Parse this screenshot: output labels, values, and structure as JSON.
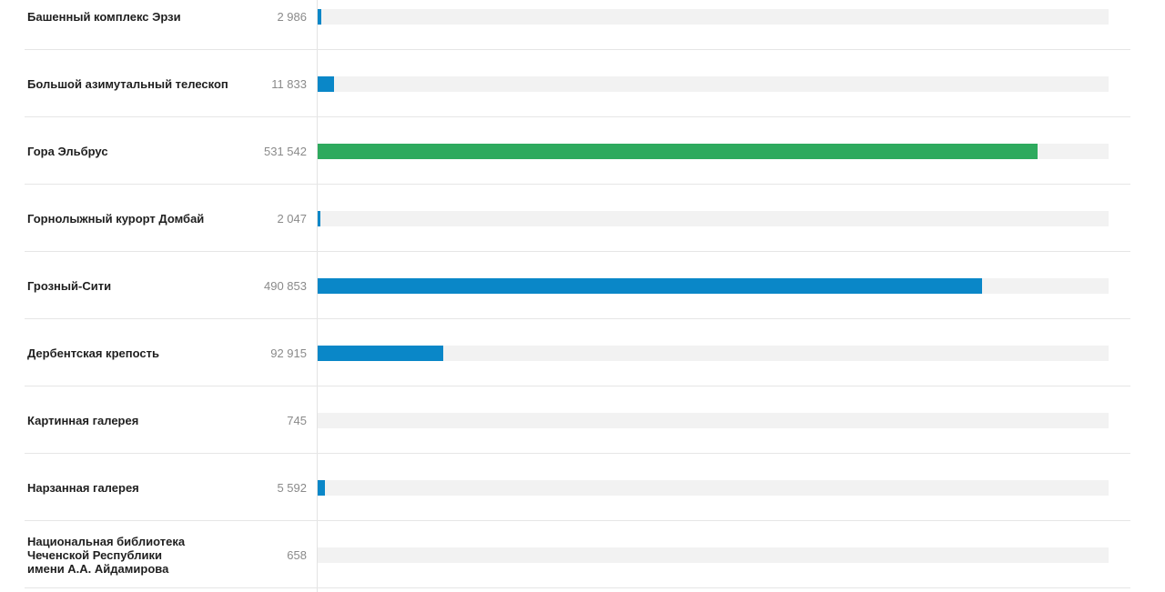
{
  "chart_data": {
    "type": "bar",
    "orientation": "horizontal",
    "categories": [
      "Башенный комплекс Эрзи",
      "Большой азимутальный телескоп",
      "Гора Эльбрус",
      "Горнолыжный курорт Домбай",
      "Грозный-Сити",
      "Дербентская крепость",
      "Картинная галерея",
      "Нарзанная галерея",
      "Национальная библиотека\nЧеченской Республики\nимени А.А. Айдамирова"
    ],
    "values": [
      2986,
      11833,
      531542,
      2047,
      490853,
      92915,
      745,
      5592,
      658
    ],
    "value_labels": [
      "2 986",
      "11 833",
      "531 542",
      "2 047",
      "490 853",
      "92 915",
      "745",
      "5 592",
      "658"
    ],
    "xlim": [
      0,
      584000
    ],
    "highlight_index": 2,
    "colors": {
      "bar": "#0a87c8",
      "highlight": "#2eaa5e",
      "track": "#f2f2f2"
    },
    "title": "",
    "xlabel": "",
    "ylabel": ""
  }
}
